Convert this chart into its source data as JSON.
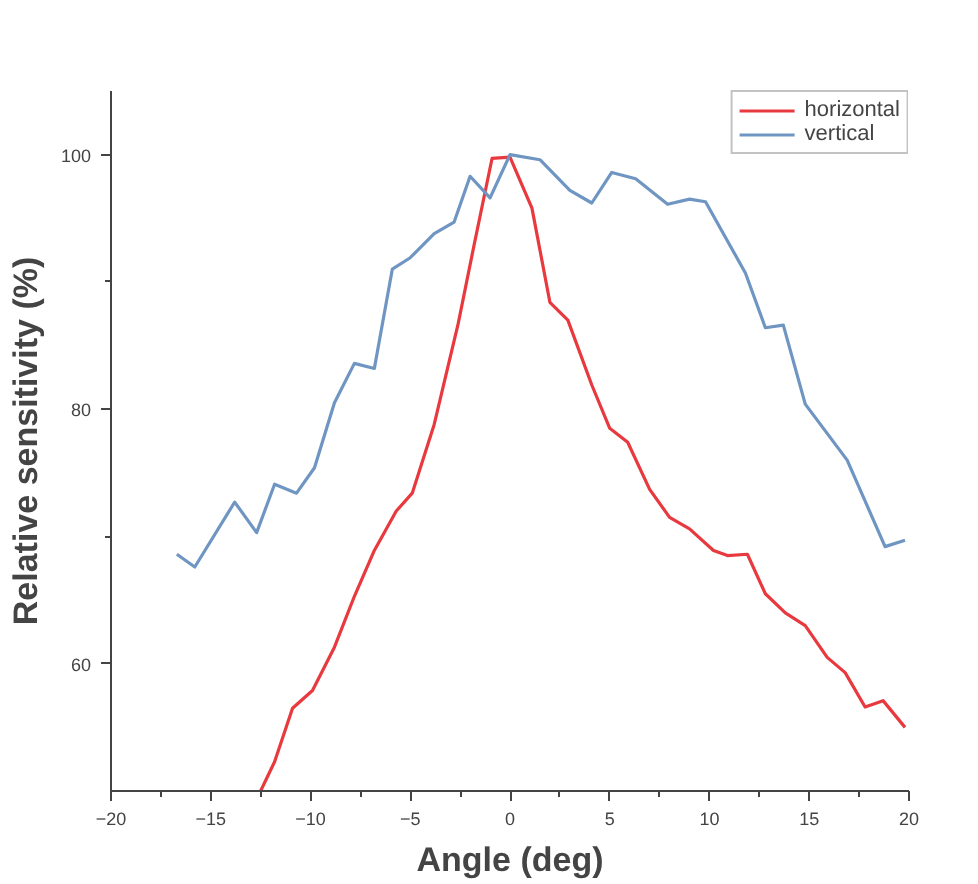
{
  "chart_data": {
    "type": "line",
    "xlabel": "Angle (deg)",
    "ylabel": "Relative sensitivity (%)",
    "xlim": [
      -20,
      20
    ],
    "ylim": [
      50,
      105
    ],
    "xticks": [
      -20,
      {
        "value": -17.5,
        "label": null
      },
      -15,
      {
        "value": -12.5,
        "label": null
      },
      -10,
      {
        "value": -7.5,
        "label": null
      },
      -5,
      {
        "value": -2.5,
        "label": null
      },
      0,
      {
        "value": 2.5,
        "label": null
      },
      5,
      {
        "value": 7.5,
        "label": null
      },
      10,
      {
        "value": 12.5,
        "label": null
      },
      15,
      {
        "value": 17.5,
        "label": null
      },
      20
    ],
    "yticks": [
      60,
      {
        "value": 70,
        "label": null
      },
      80,
      {
        "value": 90,
        "label": null
      },
      100
    ],
    "grid": false,
    "legend": "top right",
    "marker": "none",
    "line_style": "solid",
    "series": [
      {
        "name": "horizontal",
        "color": "#e8393f",
        "x": [
          -12.5,
          -11.8,
          -10.9,
          -9.9,
          -8.8,
          -7.8,
          -6.8,
          -5.7,
          -4.9,
          -3.8,
          -2.6,
          -1.8,
          -0.9,
          0,
          1.1,
          2.0,
          2.9,
          4.1,
          5.0,
          5.9,
          7.0,
          8.0,
          9.0,
          10.2,
          10.9,
          11.9,
          12.8,
          13.8,
          14.8,
          15.9,
          16.8,
          17.8,
          18.7,
          19.8
        ],
        "values": [
          50.0,
          52.3,
          56.5,
          57.9,
          61.3,
          65.3,
          68.9,
          72.0,
          73.4,
          78.8,
          86.7,
          92.9,
          99.7,
          99.8,
          95.8,
          88.4,
          87.0,
          81.9,
          78.5,
          77.4,
          73.7,
          71.5,
          70.6,
          68.9,
          68.5,
          68.6,
          65.5,
          64.0,
          63.0,
          60.5,
          59.3,
          56.6,
          57.1,
          55.0
        ]
      },
      {
        "name": "vertical",
        "color": "#6f95c2",
        "x": [
          -16.7,
          -15.8,
          -13.8,
          -12.7,
          -11.8,
          -10.7,
          -9.8,
          -8.8,
          -7.8,
          -6.8,
          -5.9,
          -5.0,
          -3.8,
          -2.8,
          -2.0,
          -1.0,
          0,
          1.5,
          3.0,
          4.1,
          5.1,
          6.3,
          7.9,
          9.0,
          9.8,
          11.8,
          12.8,
          13.7,
          14.8,
          16.9,
          18.8,
          19.8
        ],
        "values": [
          68.6,
          67.6,
          72.7,
          70.3,
          74.1,
          73.4,
          75.4,
          80.5,
          83.6,
          83.2,
          91.0,
          91.9,
          93.8,
          94.7,
          98.3,
          96.6,
          100,
          99.6,
          97.2,
          96.2,
          98.6,
          98.1,
          96.1,
          96.5,
          96.3,
          90.7,
          86.4,
          86.6,
          80.4,
          76.0,
          69.2,
          69.7
        ]
      }
    ]
  }
}
